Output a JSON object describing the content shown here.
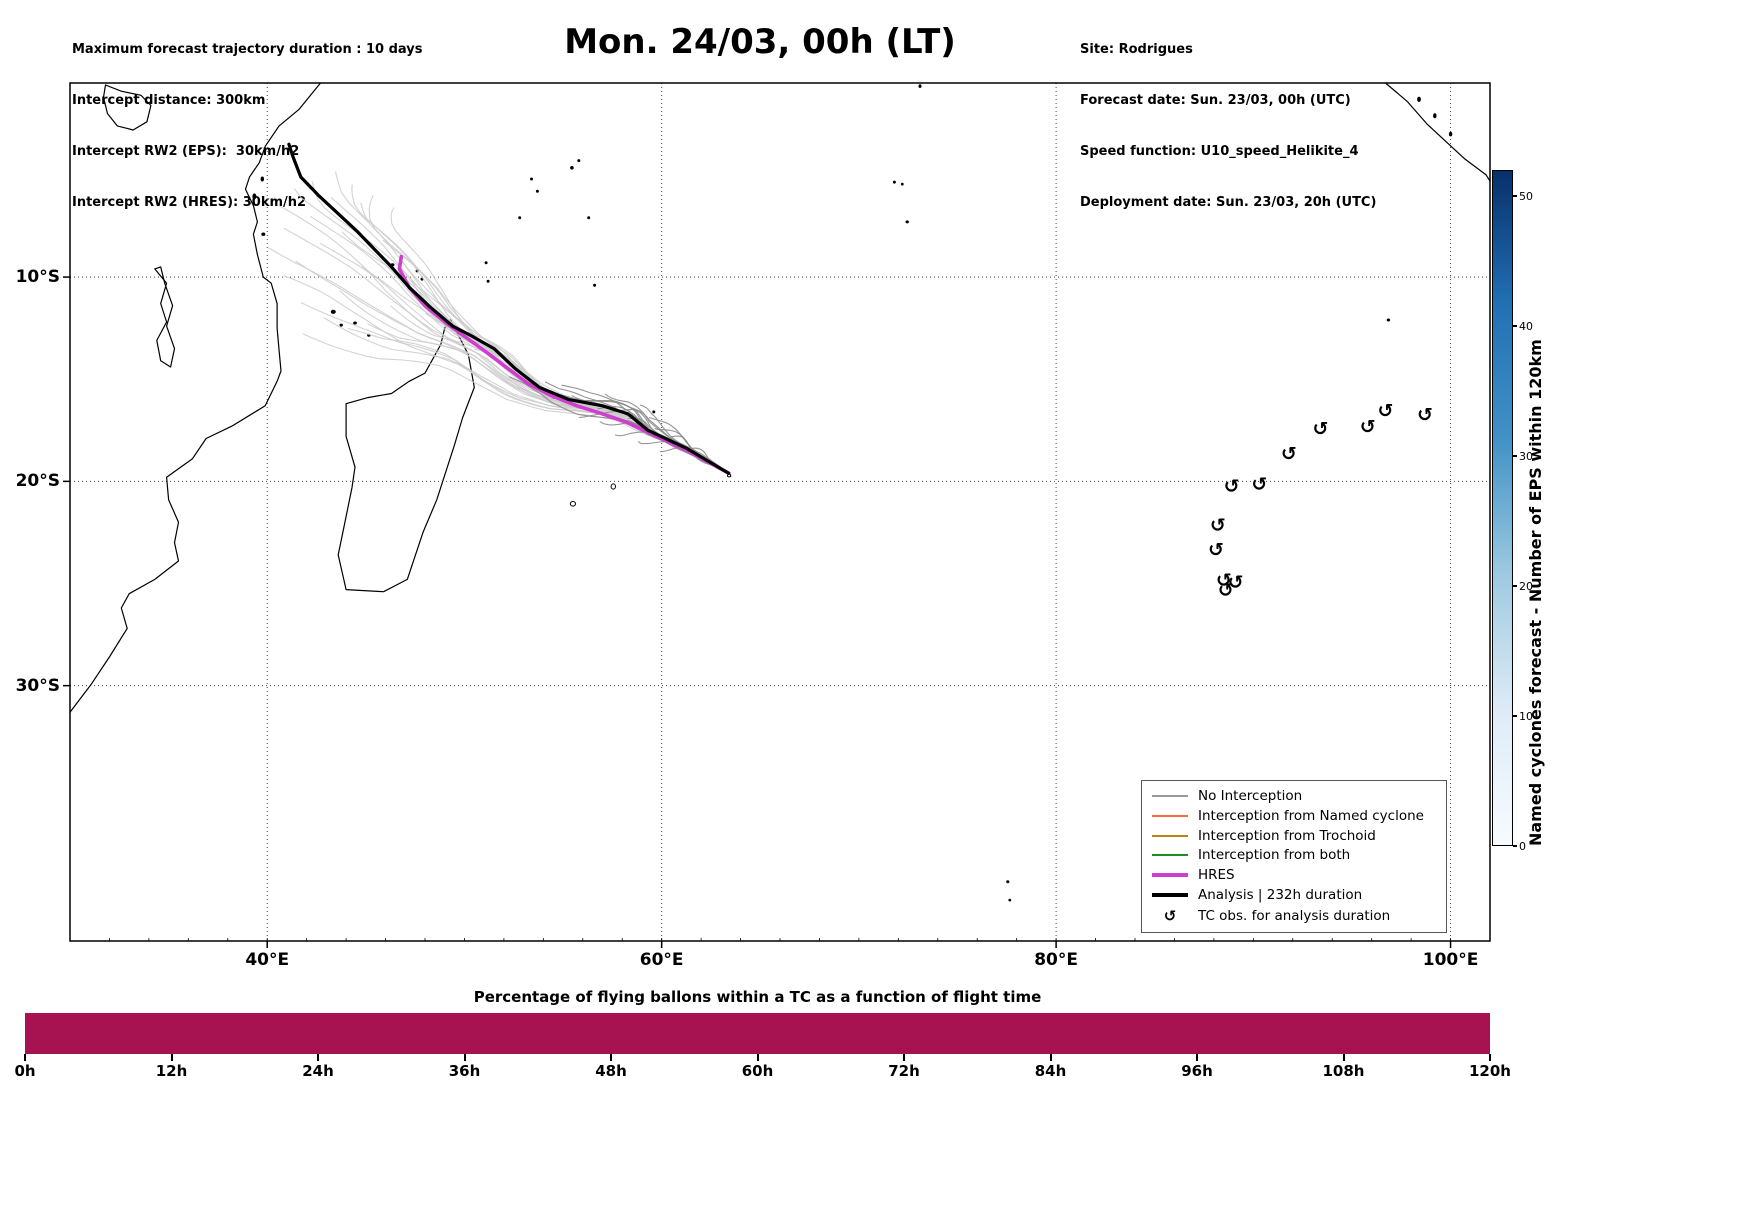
{
  "header": {
    "left_lines": [
      "Maximum forecast trajectory duration : 10 days",
      "Intercept distance: 300km",
      "Intercept RW2 (EPS):  30km/h2",
      "Intercept RW2 (HRES): 30km/h2"
    ],
    "title": "Mon. 24/03, 00h (LT)",
    "right_lines": [
      "Site: Rodrigues",
      "Forecast date: Sun. 23/03, 00h (UTC)",
      "Speed function: U10_speed_Helikite_4",
      "Deployment date: Sun. 23/03, 20h (UTC)"
    ]
  },
  "chart_data": {
    "type": "map-trajectory",
    "map": {
      "lon_range": [
        30,
        102
      ],
      "lat_range": [
        -42.5,
        -0.5
      ],
      "x_ticks": [
        {
          "v": 40,
          "label": "40°E"
        },
        {
          "v": 60,
          "label": "60°E"
        },
        {
          "v": 80,
          "label": "80°E"
        },
        {
          "v": 100,
          "label": "100°E"
        }
      ],
      "y_ticks": [
        {
          "v": -10,
          "label": "10°S"
        },
        {
          "v": -20,
          "label": "20°S"
        },
        {
          "v": -30,
          "label": "30°S"
        }
      ],
      "grid": true
    },
    "site_start": [
      63.4,
      -19.6
    ],
    "analysis_track": [
      [
        63.4,
        -19.6
      ],
      [
        61.3,
        -18.4
      ],
      [
        59.3,
        -17.5
      ],
      [
        58.3,
        -16.7
      ],
      [
        57.0,
        -16.3
      ],
      [
        55.3,
        -16.0
      ],
      [
        53.8,
        -15.4
      ],
      [
        52.6,
        -14.5
      ],
      [
        51.5,
        -13.5
      ],
      [
        50.4,
        -12.9
      ],
      [
        49.4,
        -12.4
      ],
      [
        48.3,
        -11.5
      ],
      [
        47.2,
        -10.5
      ],
      [
        46.3,
        -9.5
      ],
      [
        45.4,
        -8.6
      ],
      [
        44.6,
        -7.8
      ],
      [
        43.6,
        -6.9
      ],
      [
        42.6,
        -6.0
      ],
      [
        41.7,
        -5.1
      ],
      [
        41.3,
        -4.1
      ],
      [
        41.1,
        -3.5
      ]
    ],
    "hres_track": [
      [
        63.4,
        -19.6
      ],
      [
        61.3,
        -18.5
      ],
      [
        59.3,
        -17.6
      ],
      [
        58.2,
        -17.1
      ],
      [
        57.0,
        -16.7
      ],
      [
        55.7,
        -16.3
      ],
      [
        54.4,
        -15.8
      ],
      [
        53.2,
        -15.2
      ],
      [
        52.1,
        -14.4
      ],
      [
        51.0,
        -13.6
      ],
      [
        50.0,
        -12.9
      ],
      [
        49.0,
        -12.2
      ],
      [
        48.0,
        -11.4
      ],
      [
        47.2,
        -10.5
      ],
      [
        46.7,
        -9.6
      ],
      [
        46.8,
        -9.0
      ]
    ],
    "ensemble_tracks": [
      [
        40.5,
        -6.5,
        0.85,
        0,
        0.35,
        0.3
      ],
      [
        41.5,
        -5.5,
        0.92,
        0,
        0.3,
        1.2
      ],
      [
        42.5,
        -5.0,
        0.97,
        0,
        0.4,
        2.2
      ],
      [
        43.5,
        -4.8,
        1,
        0,
        0.3,
        0.6
      ],
      [
        44.5,
        -5.2,
        1,
        0,
        0.35,
        1.8
      ],
      [
        45.5,
        -5.8,
        1,
        0,
        0.4,
        2.9
      ],
      [
        46.5,
        -6.5,
        1,
        0,
        0.3,
        0.9
      ],
      [
        44.0,
        -7.5,
        0.9,
        0,
        0.35,
        2.0
      ],
      [
        42.8,
        -8.2,
        0.8,
        0,
        0.3,
        1.1
      ],
      [
        41.6,
        -9.0,
        0.75,
        0,
        0.3,
        2.5
      ],
      [
        40.8,
        -10.0,
        0.72,
        0,
        0.3,
        0.2
      ],
      [
        41.9,
        -11.0,
        0.65,
        0,
        0.35,
        1.5
      ],
      [
        43.0,
        -11.8,
        0.6,
        0,
        0.3,
        2.7
      ],
      [
        44.2,
        -12.4,
        0.55,
        0,
        0.4,
        0.8
      ],
      [
        45.3,
        -12.0,
        0.55,
        0,
        0.35,
        1.9
      ],
      [
        46.4,
        -11.2,
        0.58,
        0,
        0.3,
        2.6
      ],
      [
        47.3,
        -10.2,
        0.62,
        0,
        0.3,
        0.4
      ],
      [
        45.0,
        -9.2,
        0.7,
        0,
        0.35,
        1.7
      ],
      [
        43.8,
        -10.5,
        0.65,
        0,
        0.3,
        2.8
      ],
      [
        42.3,
        -6.9,
        0.85,
        0,
        0.3,
        1.0
      ],
      [
        40.2,
        -8.3,
        0.78,
        0,
        0.3,
        2.1
      ],
      [
        44.8,
        -6.3,
        0.95,
        0,
        0.35,
        0.7
      ],
      [
        46.0,
        -8.0,
        0.85,
        0,
        0.3,
        1.3
      ],
      [
        47.0,
        -9.0,
        0.75,
        0,
        0.3,
        2.4
      ],
      [
        48.2,
        -11.5,
        0.55,
        0,
        0.35,
        1.6
      ],
      [
        43.2,
        -6.2,
        0.9,
        0,
        0.3,
        0.1
      ],
      [
        41.0,
        -7.4,
        0.8,
        0,
        0.3,
        1.4
      ],
      [
        42.0,
        -12.5,
        0.6,
        0,
        0.35,
        2.3
      ],
      [
        50.5,
        -13.5,
        0.45,
        0,
        0.3,
        0.5
      ],
      [
        52.0,
        -14.8,
        0.38,
        0,
        0.3,
        1.5
      ],
      [
        49.3,
        -12.2,
        0.52,
        0,
        0.3,
        2.5
      ],
      [
        60.5,
        -17.8,
        0.08,
        1,
        0.3,
        0.5
      ],
      [
        59.8,
        -17.2,
        0.09,
        1,
        0.3,
        1.5
      ],
      [
        59.0,
        -17.8,
        0.11,
        1,
        0.35,
        2.5
      ],
      [
        58.4,
        -16.8,
        0.14,
        1,
        0.3,
        0.9
      ],
      [
        57.6,
        -16.2,
        0.19,
        1,
        0.35,
        1.9
      ],
      [
        57.0,
        -16.9,
        0.2,
        1,
        0.35,
        2.9
      ],
      [
        56.3,
        -15.9,
        0.24,
        1,
        0.25,
        1.2
      ],
      [
        55.6,
        -15.6,
        0.27,
        1,
        0.25,
        2.2
      ],
      [
        58.9,
        -16.3,
        0.12,
        1,
        0.3,
        0.3
      ],
      [
        60.1,
        -18.3,
        0.085,
        1,
        0.3,
        1.8
      ],
      [
        57.8,
        -17.5,
        0.18,
        1,
        0.35,
        2.7
      ],
      [
        56.8,
        -16.4,
        0.21,
        1,
        0.35,
        0.6
      ],
      [
        59.5,
        -16.7,
        0.1,
        1,
        0.25,
        1.4
      ],
      [
        58.0,
        -15.9,
        0.16,
        1,
        0.3,
        2.0
      ],
      [
        61.0,
        -18.0,
        0.07,
        1,
        0.35,
        3.0
      ],
      [
        55.0,
        -15.2,
        0.3,
        1,
        0.3,
        0.8
      ],
      [
        56.0,
        -16.6,
        0.25,
        1,
        0.35,
        1.6
      ],
      [
        57.3,
        -15.5,
        0.19,
        1,
        0.3,
        2.4
      ],
      [
        54.2,
        -15.0,
        0.33,
        1,
        0.3,
        1.0
      ],
      [
        53.0,
        -14.6,
        0.36,
        1,
        0.3,
        2.0
      ],
      [
        52.3,
        -14.9,
        0.4,
        1,
        0.3,
        0.4
      ]
    ],
    "tc_obs": [
      [
        98.7,
        -16.7
      ],
      [
        96.7,
        -16.5
      ],
      [
        95.8,
        -17.3
      ],
      [
        93.4,
        -17.4
      ],
      [
        91.8,
        -18.6
      ],
      [
        90.3,
        -20.1
      ],
      [
        88.9,
        -20.2
      ],
      [
        88.2,
        -22.1
      ],
      [
        88.1,
        -23.3
      ],
      [
        88.5,
        -24.8
      ],
      [
        89.1,
        -24.9
      ],
      [
        88.6,
        -25.3
      ]
    ],
    "tc_obs_symbol": "↺",
    "colors": {
      "light": "#cbcbcb",
      "dark": "#8a8a8a",
      "hres": "#cf3ecf",
      "analysis": "#000000"
    }
  },
  "coast": {
    "lines": [
      {
        "name": "africa",
        "pts": [
          [
            42.7,
            -0.5
          ],
          [
            41.6,
            -1.8
          ],
          [
            40.6,
            -2.6
          ],
          [
            39.9,
            -3.6
          ],
          [
            39.6,
            -4.4
          ],
          [
            39.1,
            -5.1
          ],
          [
            38.9,
            -5.7
          ],
          [
            39.3,
            -6.5
          ],
          [
            39.5,
            -7.3
          ],
          [
            39.3,
            -7.9
          ],
          [
            39.5,
            -8.9
          ],
          [
            39.8,
            -10.0
          ],
          [
            40.2,
            -10.3
          ],
          [
            40.5,
            -11.3
          ],
          [
            40.5,
            -12.5
          ],
          [
            40.6,
            -13.6
          ],
          [
            40.7,
            -14.6
          ],
          [
            40.5,
            -15.1
          ],
          [
            39.9,
            -16.3
          ],
          [
            38.2,
            -17.3
          ],
          [
            36.9,
            -17.9
          ],
          [
            36.2,
            -18.9
          ],
          [
            34.9,
            -19.8
          ],
          [
            35.0,
            -20.9
          ],
          [
            35.5,
            -22.0
          ],
          [
            35.3,
            -23.0
          ],
          [
            35.5,
            -23.9
          ],
          [
            34.3,
            -24.8
          ],
          [
            33.0,
            -25.5
          ],
          [
            32.6,
            -26.2
          ],
          [
            32.9,
            -27.2
          ],
          [
            32.0,
            -28.6
          ],
          [
            31.1,
            -29.9
          ],
          [
            30.0,
            -31.3
          ]
        ]
      },
      {
        "name": "madagascar",
        "pts": [
          [
            49.3,
            -12.1
          ],
          [
            50.2,
            -13.8
          ],
          [
            50.5,
            -15.4
          ],
          [
            49.9,
            -16.9
          ],
          [
            49.5,
            -18.2
          ],
          [
            48.6,
            -20.9
          ],
          [
            47.9,
            -22.5
          ],
          [
            47.1,
            -24.8
          ],
          [
            45.9,
            -25.4
          ],
          [
            44.0,
            -25.3
          ],
          [
            43.6,
            -23.6
          ],
          [
            43.9,
            -22.2
          ],
          [
            44.3,
            -20.3
          ],
          [
            44.45,
            -19.3
          ],
          [
            44.0,
            -17.8
          ],
          [
            44.0,
            -16.2
          ],
          [
            45.1,
            -15.9
          ],
          [
            46.3,
            -15.7
          ],
          [
            47.2,
            -15.1
          ],
          [
            48.0,
            -14.7
          ],
          [
            48.8,
            -13.3
          ],
          [
            49.0,
            -12.5
          ],
          [
            49.3,
            -12.1
          ]
        ]
      },
      {
        "name": "sumatra",
        "pts": [
          [
            96.7,
            -0.5
          ],
          [
            97.8,
            -1.4
          ],
          [
            98.8,
            -2.5
          ],
          [
            99.8,
            -3.4
          ],
          [
            100.7,
            -4.2
          ],
          [
            101.8,
            -5.0
          ],
          [
            102.0,
            -5.3
          ]
        ]
      },
      {
        "name": "lake-victoria",
        "pts": [
          [
            31.8,
            -0.6
          ],
          [
            32.6,
            -0.9
          ],
          [
            33.6,
            -1.1
          ],
          [
            34.1,
            -1.6
          ],
          [
            33.9,
            -2.4
          ],
          [
            33.2,
            -2.8
          ],
          [
            32.4,
            -2.6
          ],
          [
            31.9,
            -2.0
          ],
          [
            31.7,
            -1.2
          ],
          [
            31.8,
            -0.6
          ]
        ]
      },
      {
        "name": "lake-malawi",
        "pts": [
          [
            34.3,
            -9.6
          ],
          [
            34.9,
            -10.3
          ],
          [
            34.6,
            -11.3
          ],
          [
            34.9,
            -12.2
          ],
          [
            34.4,
            -13.1
          ],
          [
            34.6,
            -14.1
          ],
          [
            35.1,
            -14.4
          ],
          [
            35.3,
            -13.5
          ],
          [
            34.9,
            -12.4
          ],
          [
            35.2,
            -11.4
          ],
          [
            34.8,
            -10.3
          ],
          [
            34.6,
            -9.5
          ],
          [
            34.3,
            -9.6
          ]
        ]
      }
    ],
    "islands": [
      [
        39.35,
        -6.05,
        1.5,
        2.5,
        1
      ],
      [
        39.75,
        -5.2,
        1.2,
        2,
        1
      ],
      [
        39.8,
        -7.9,
        1.5,
        1.2,
        1
      ],
      [
        43.35,
        -11.7,
        2,
        1.6,
        1
      ],
      [
        43.75,
        -12.35,
        1.2,
        1,
        1
      ],
      [
        44.45,
        -12.25,
        1.4,
        1,
        1
      ],
      [
        45.15,
        -12.85,
        1.2,
        1,
        1
      ],
      [
        55.45,
        -4.65,
        1.3,
        1.3,
        1
      ],
      [
        55.8,
        -4.3,
        1,
        1,
        1
      ],
      [
        53.4,
        -5.2,
        1,
        1,
        1
      ],
      [
        53.7,
        -5.8,
        1,
        1,
        1
      ],
      [
        52.8,
        -7.1,
        1,
        1,
        1
      ],
      [
        56.3,
        -7.1,
        1,
        1,
        1
      ],
      [
        51.1,
        -9.3,
        1,
        1,
        1
      ],
      [
        51.2,
        -10.2,
        1,
        1,
        1
      ],
      [
        46.35,
        -9.4,
        1.5,
        1,
        1
      ],
      [
        47.6,
        -9.7,
        1,
        1,
        1
      ],
      [
        47.85,
        -10.1,
        1,
        1,
        1
      ],
      [
        56.6,
        -10.4,
        1,
        1,
        1
      ],
      [
        54.5,
        -15.9,
        0.9,
        0.9,
        1
      ],
      [
        59.6,
        -16.6,
        1,
        1,
        1
      ],
      [
        57.55,
        -20.25,
        2.2,
        2.6,
        0
      ],
      [
        55.5,
        -21.1,
        2.6,
        2.3,
        0
      ],
      [
        63.42,
        -19.72,
        1.6,
        1.3,
        0
      ],
      [
        71.8,
        -5.35,
        1,
        1,
        1
      ],
      [
        72.2,
        -5.45,
        0.9,
        0.9,
        1
      ],
      [
        72.45,
        -7.3,
        1.2,
        1,
        1
      ],
      [
        73.1,
        -0.65,
        1,
        1.4,
        1
      ],
      [
        96.85,
        -12.1,
        1.2,
        1,
        1
      ],
      [
        98.4,
        -1.3,
        1.4,
        2.2,
        1
      ],
      [
        99.2,
        -2.1,
        1.2,
        2,
        1
      ],
      [
        100.0,
        -3.0,
        1.2,
        1.8,
        1
      ],
      [
        77.55,
        -39.6,
        1.1,
        1,
        1
      ],
      [
        77.65,
        -40.5,
        0.9,
        0.9,
        1
      ]
    ]
  },
  "legend": {
    "items": [
      {
        "label": "No Interception",
        "color": "#999999",
        "lw": 2,
        "kind": "line"
      },
      {
        "label": "Interception from Named cyclone",
        "color": "#ff6a3d",
        "lw": 2,
        "kind": "line"
      },
      {
        "label": "Interception from Trochoid",
        "color": "#b8860b",
        "lw": 2,
        "kind": "line"
      },
      {
        "label": "Interception from both",
        "color": "#228b22",
        "lw": 2,
        "kind": "line"
      },
      {
        "label": "HRES",
        "color": "#cf3ecf",
        "lw": 4,
        "kind": "line"
      },
      {
        "label": "Analysis | 232h duration",
        "color": "#000000",
        "lw": 4,
        "kind": "line"
      },
      {
        "label": "TC obs. for analysis duration",
        "color": "#000000",
        "kind": "symbol",
        "symbol": "↺"
      }
    ]
  },
  "colorbar": {
    "label": "Named cyclones forecast - Number of EPS within 120km",
    "vmin": 0,
    "vmax": 52,
    "ticks": [
      0,
      10,
      20,
      30,
      40,
      50
    ],
    "stops": [
      "#f7fbff",
      "#deebf7",
      "#9ecae1",
      "#4292c6",
      "#2171b5",
      "#08306b"
    ]
  },
  "bottom_chart": {
    "type": "bar",
    "title": "Percentage of flying ballons within a TC as a function of flight time",
    "x_tick_labels": [
      "0h",
      "12h",
      "24h",
      "36h",
      "48h",
      "60h",
      "72h",
      "84h",
      "96h",
      "108h",
      "120h"
    ],
    "bar_color": "#a61350",
    "series": [
      {
        "name": "percentage_within_TC",
        "x_range_hours": [
          0,
          120
        ],
        "value_percent": 100
      }
    ]
  }
}
